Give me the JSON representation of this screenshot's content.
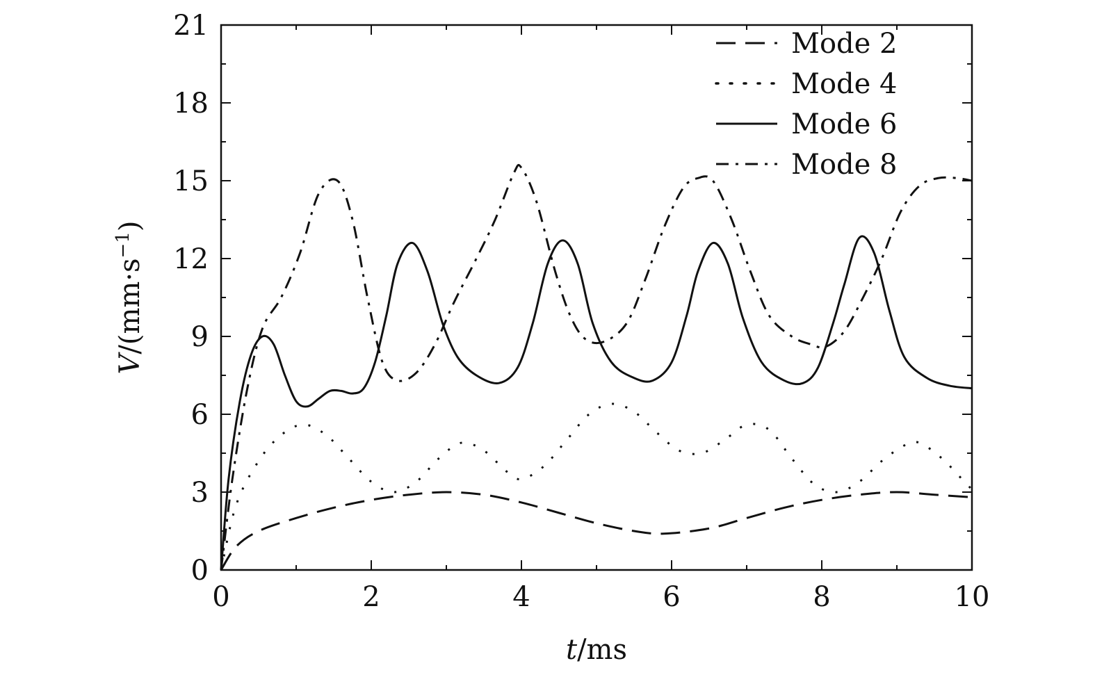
{
  "chart_data": {
    "type": "line",
    "title": "",
    "xlabel": "t/ms",
    "ylabel": "V/(mm·s⁻¹)",
    "xlim": [
      0,
      10
    ],
    "ylim": [
      0,
      21
    ],
    "xticks": [
      0,
      2,
      4,
      6,
      8,
      10
    ],
    "yticks": [
      0,
      3,
      6,
      9,
      12,
      15,
      18,
      21
    ],
    "grid": false,
    "legend": "top-right",
    "series": [
      {
        "name": "Mode 2",
        "style": "dashed",
        "x": [
          0,
          0.2,
          0.5,
          1.0,
          1.5,
          2.0,
          2.5,
          3.0,
          3.5,
          4.0,
          4.5,
          5.0,
          5.5,
          5.9,
          6.5,
          7.0,
          7.5,
          8.0,
          8.5,
          9.0,
          9.5,
          10.0
        ],
        "y": [
          0,
          0.9,
          1.5,
          2.0,
          2.4,
          2.7,
          2.9,
          3.0,
          2.9,
          2.6,
          2.2,
          1.8,
          1.5,
          1.4,
          1.6,
          2.0,
          2.4,
          2.7,
          2.9,
          3.0,
          2.9,
          2.8
        ]
      },
      {
        "name": "Mode 4",
        "style": "dotted",
        "x": [
          0,
          0.2,
          0.5,
          0.8,
          1.1,
          1.4,
          1.7,
          2.0,
          2.3,
          2.6,
          2.9,
          3.2,
          3.5,
          3.8,
          4.0,
          4.3,
          4.6,
          4.9,
          5.2,
          5.5,
          5.8,
          6.1,
          6.4,
          6.7,
          7.0,
          7.3,
          7.6,
          7.9,
          8.2,
          8.5,
          8.8,
          9.1,
          9.3,
          9.6,
          9.9,
          10.0
        ],
        "y": [
          0,
          2.5,
          4.2,
          5.2,
          5.6,
          5.2,
          4.3,
          3.4,
          3.0,
          3.4,
          4.3,
          4.9,
          4.6,
          3.8,
          3.5,
          4.0,
          5.0,
          6.0,
          6.4,
          6.1,
          5.3,
          4.6,
          4.5,
          5.0,
          5.6,
          5.4,
          4.3,
          3.3,
          3.0,
          3.4,
          4.2,
          4.8,
          4.9,
          4.3,
          3.4,
          3.1
        ]
      },
      {
        "name": "Mode 6",
        "style": "solid",
        "x": [
          0,
          0.1,
          0.25,
          0.4,
          0.55,
          0.7,
          0.85,
          1.0,
          1.15,
          1.3,
          1.45,
          1.6,
          1.75,
          1.9,
          2.05,
          2.2,
          2.35,
          2.55,
          2.75,
          2.95,
          3.15,
          3.4,
          3.7,
          3.95,
          4.15,
          4.35,
          4.55,
          4.75,
          4.95,
          5.2,
          5.5,
          5.75,
          6.0,
          6.2,
          6.35,
          6.55,
          6.75,
          6.95,
          7.2,
          7.5,
          7.75,
          7.95,
          8.15,
          8.3,
          8.5,
          8.7,
          8.9,
          9.1,
          9.4,
          9.7,
          10.0
        ],
        "y": [
          0,
          3.5,
          6.5,
          8.3,
          9.0,
          8.7,
          7.5,
          6.5,
          6.3,
          6.6,
          6.9,
          6.9,
          6.8,
          7.0,
          8.0,
          9.8,
          11.8,
          12.6,
          11.5,
          9.5,
          8.2,
          7.5,
          7.2,
          7.8,
          9.5,
          11.8,
          12.7,
          11.8,
          9.5,
          8.0,
          7.4,
          7.3,
          8.0,
          9.8,
          11.5,
          12.6,
          11.8,
          9.7,
          8.0,
          7.3,
          7.2,
          7.8,
          9.5,
          11.0,
          12.8,
          12.2,
          10.0,
          8.2,
          7.4,
          7.1,
          7.0
        ]
      },
      {
        "name": "Mode 8",
        "style": "dash-dot",
        "x": [
          0,
          0.15,
          0.35,
          0.55,
          0.8,
          1.05,
          1.3,
          1.55,
          1.75,
          1.95,
          2.15,
          2.35,
          2.6,
          2.85,
          3.1,
          3.4,
          3.65,
          3.9,
          4.0,
          4.2,
          4.45,
          4.65,
          4.85,
          5.1,
          5.4,
          5.65,
          5.9,
          6.15,
          6.35,
          6.55,
          6.8,
          7.05,
          7.3,
          7.6,
          7.85,
          8.05,
          8.3,
          8.55,
          8.8,
          9.05,
          9.3,
          9.55,
          9.8,
          10.0
        ],
        "y": [
          0,
          3.5,
          7.0,
          9.3,
          10.5,
          12.2,
          14.5,
          15.0,
          13.5,
          10.5,
          8.0,
          7.3,
          7.6,
          8.7,
          10.3,
          12.0,
          13.5,
          15.3,
          15.5,
          14.2,
          11.5,
          9.8,
          8.9,
          8.8,
          9.5,
          11.2,
          13.2,
          14.7,
          15.1,
          15.0,
          13.5,
          11.5,
          9.8,
          9.0,
          8.7,
          8.6,
          9.2,
          10.5,
          12.0,
          13.8,
          14.8,
          15.1,
          15.1,
          15.0
        ]
      }
    ]
  }
}
